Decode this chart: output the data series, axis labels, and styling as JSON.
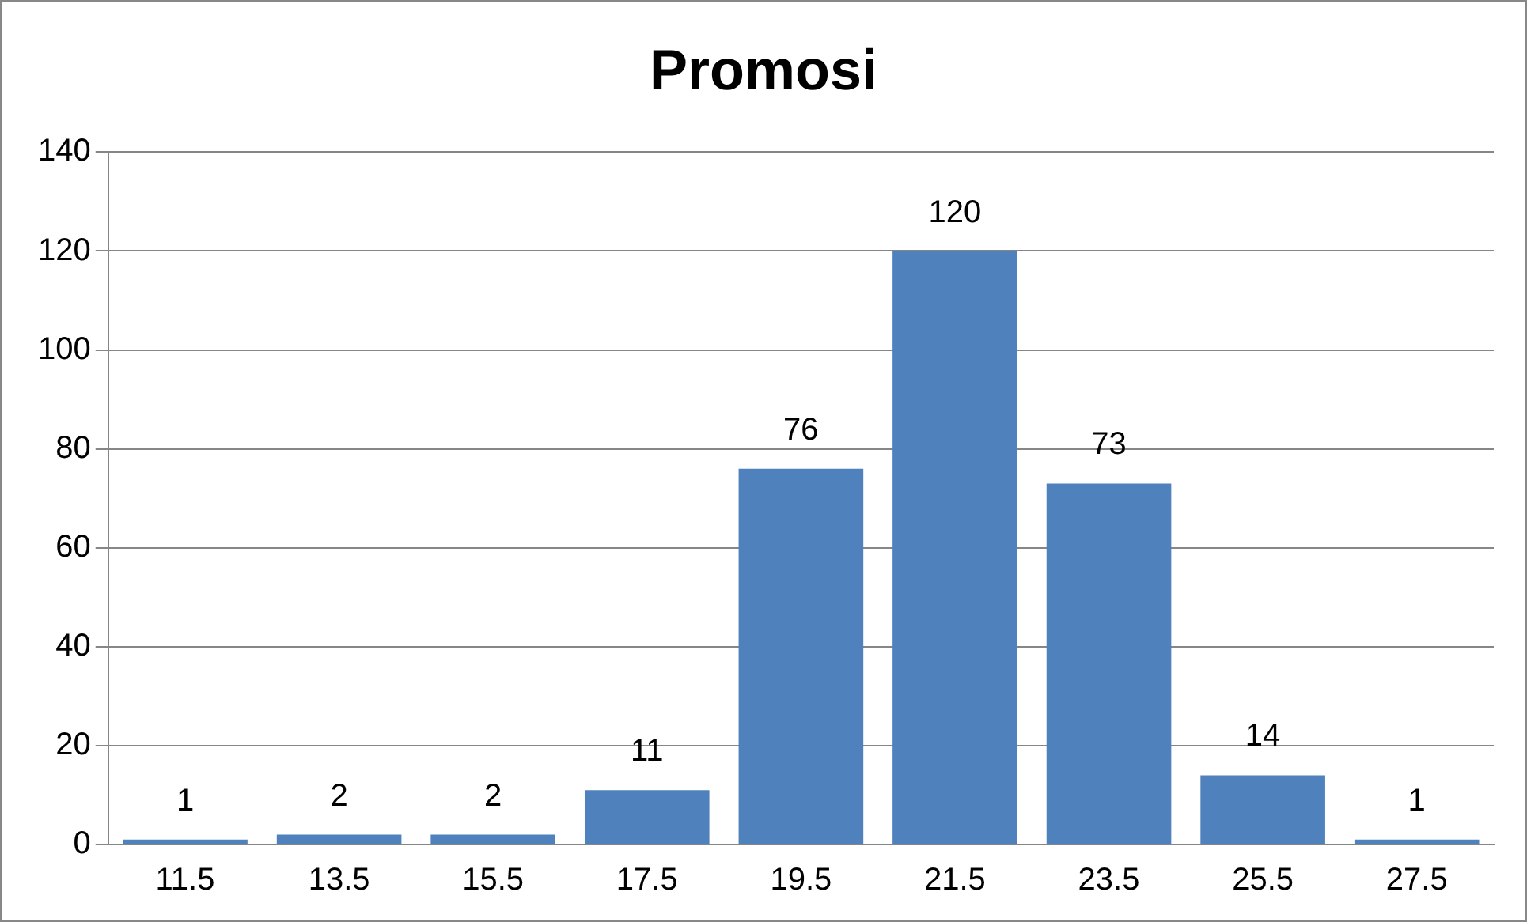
{
  "chart_data": {
    "type": "bar",
    "title": "Promosi",
    "categories": [
      "11.5",
      "13.5",
      "15.5",
      "17.5",
      "19.5",
      "21.5",
      "23.5",
      "25.5",
      "27.5"
    ],
    "values": [
      1,
      2,
      2,
      11,
      76,
      120,
      73,
      14,
      1
    ],
    "color": "#4f81bd",
    "ylim": [
      0,
      140
    ],
    "yticks": [
      0,
      20,
      40,
      60,
      80,
      100,
      120,
      140
    ],
    "grid": "y",
    "data_labels": true,
    "legend": false
  }
}
